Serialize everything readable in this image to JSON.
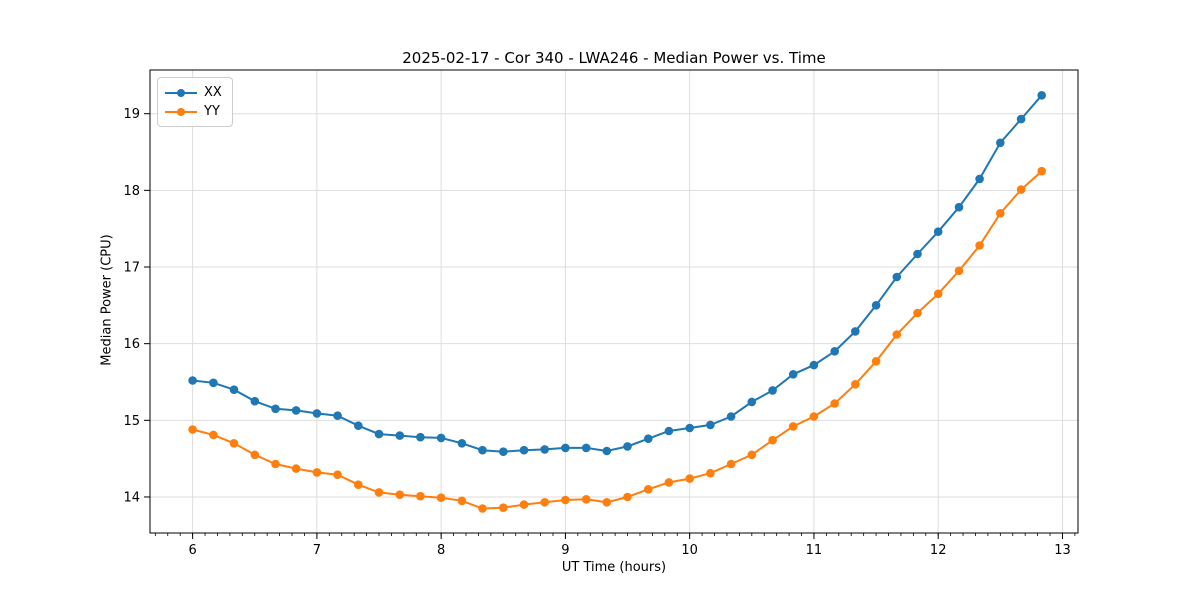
{
  "chart_data": {
    "type": "line",
    "title": "2025-02-17 - Cor 340 - LWA246 - Median Power vs. Time",
    "xlabel": "UT Time (hours)",
    "ylabel": "Median Power (CPU)",
    "x": [
      6.0,
      6.167,
      6.333,
      6.5,
      6.667,
      6.833,
      7.0,
      7.167,
      7.333,
      7.5,
      7.667,
      7.833,
      8.0,
      8.167,
      8.333,
      8.5,
      8.667,
      8.833,
      9.0,
      9.167,
      9.333,
      9.5,
      9.667,
      9.833,
      10.0,
      10.167,
      10.333,
      10.5,
      10.667,
      10.833,
      11.0,
      11.167,
      11.333,
      11.5,
      11.667,
      11.833,
      12.0,
      12.167,
      12.333,
      12.5,
      12.667,
      12.833
    ],
    "series": [
      {
        "name": "XX",
        "color": "#1f77b4",
        "values": [
          15.52,
          15.49,
          15.4,
          15.25,
          15.15,
          15.13,
          15.09,
          15.06,
          14.93,
          14.82,
          14.8,
          14.78,
          14.77,
          14.7,
          14.61,
          14.59,
          14.61,
          14.62,
          14.64,
          14.64,
          14.6,
          14.66,
          14.76,
          14.86,
          14.9,
          14.94,
          15.05,
          15.24,
          15.39,
          15.6,
          15.72,
          15.9,
          16.16,
          16.5,
          16.87,
          17.17,
          17.46,
          17.78,
          18.15,
          18.62,
          18.93,
          19.24
        ]
      },
      {
        "name": "YY",
        "color": "#ff7f0e",
        "values": [
          14.88,
          14.81,
          14.7,
          14.55,
          14.43,
          14.37,
          14.32,
          14.29,
          14.16,
          14.06,
          14.03,
          14.01,
          13.99,
          13.95,
          13.85,
          13.86,
          13.9,
          13.93,
          13.96,
          13.97,
          13.93,
          14.0,
          14.1,
          14.19,
          14.24,
          14.31,
          14.43,
          14.55,
          14.74,
          14.92,
          15.05,
          15.22,
          15.47,
          15.77,
          16.12,
          16.4,
          16.65,
          16.95,
          17.28,
          17.7,
          18.01,
          18.25
        ]
      }
    ],
    "xlim": [
      5.657,
      13.125
    ],
    "ylim": [
      13.53,
      19.57
    ],
    "xticks": [
      6,
      7,
      8,
      9,
      10,
      11,
      12,
      13
    ],
    "yticks": [
      14,
      15,
      16,
      17,
      18,
      19
    ],
    "x_minor_tick_step": 0.1,
    "grid": true,
    "grid_color": "#dddddd",
    "legend_position": "upper left",
    "legend": [
      "XX",
      "YY"
    ]
  }
}
